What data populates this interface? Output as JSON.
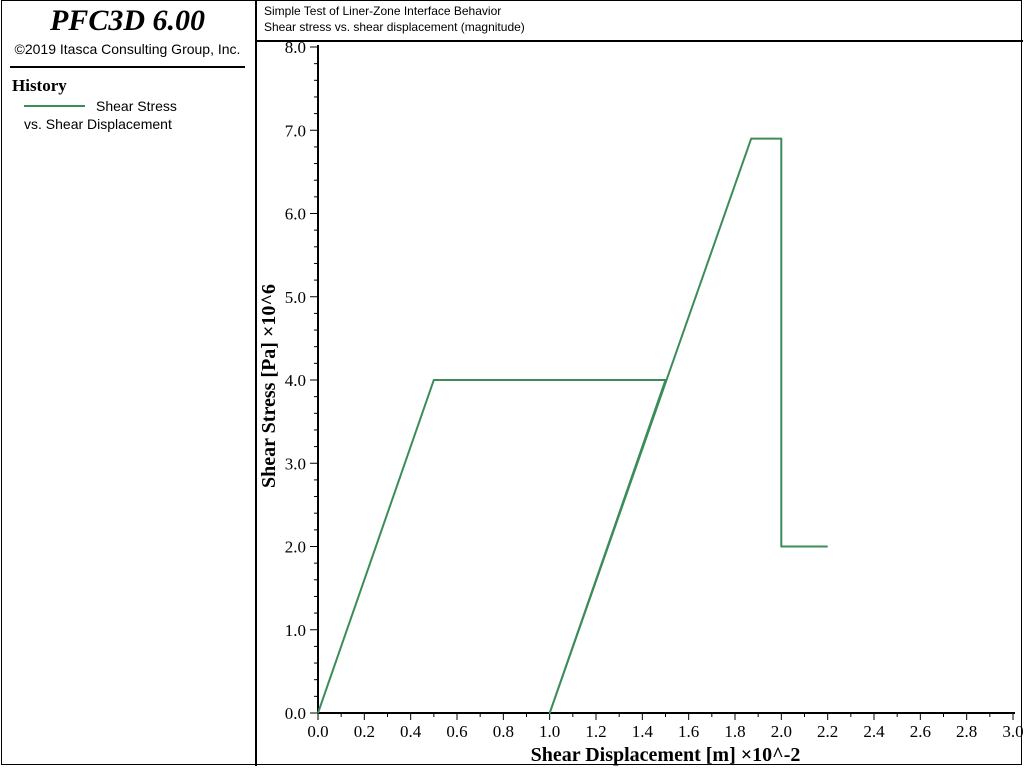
{
  "app": {
    "title": "PFC3D 6.00",
    "copyright": "©2019 Itasca Consulting Group, Inc."
  },
  "legend": {
    "heading": "History",
    "line1": "Shear Stress",
    "line2": "vs. Shear Displacement",
    "color": "#3c8c5a"
  },
  "header": {
    "line1": "Simple Test of Liner-Zone Interface Behavior",
    "line2": "Shear stress vs. shear displacement (magnitude)"
  },
  "chart_data": {
    "type": "line",
    "xlabel": "Shear Displacement [m] ×10^-2",
    "ylabel": "Shear Stress [Pa] ×10^6",
    "xlim": [
      0.0,
      3.0
    ],
    "ylim": [
      0.0,
      8.0
    ],
    "x_ticks": [
      "0.0",
      "0.2",
      "0.4",
      "0.6",
      "0.8",
      "1.0",
      "1.2",
      "1.4",
      "1.6",
      "1.8",
      "2.0",
      "2.2",
      "2.4",
      "2.6",
      "2.8",
      "3.0"
    ],
    "y_ticks": [
      "0.0",
      "1.0",
      "2.0",
      "3.0",
      "4.0",
      "5.0",
      "6.0",
      "7.0",
      "8.0"
    ],
    "grid": false,
    "series": [
      {
        "name": "Shear Stress vs. Shear Displacement",
        "color": "#3c8c5a",
        "points": [
          [
            0.0,
            0.0
          ],
          [
            0.5,
            4.0
          ],
          [
            1.5,
            4.0
          ],
          [
            1.0,
            0.0
          ],
          [
            1.87,
            6.9
          ],
          [
            2.0,
            6.9
          ],
          [
            2.0,
            2.0
          ],
          [
            2.2,
            2.0
          ]
        ]
      }
    ]
  }
}
